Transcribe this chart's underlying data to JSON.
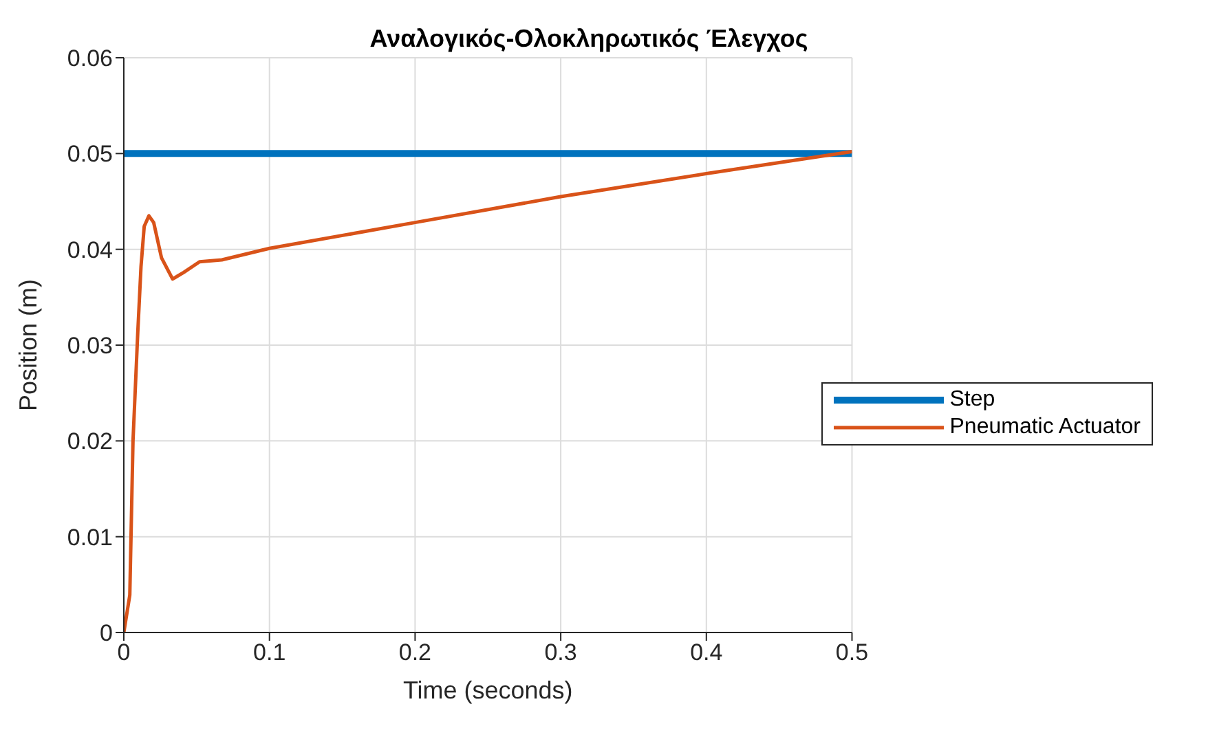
{
  "chart_data": {
    "type": "line",
    "title": "Αναλογικός-Ολοκληρωτικός Έλεγχος",
    "xlabel": "Time (seconds)",
    "ylabel": "Position (m)",
    "xlim": [
      0,
      0.5
    ],
    "xticks": [
      0,
      0.1,
      0.2,
      0.3,
      0.4,
      0.5
    ],
    "ylim": [
      0,
      0.06
    ],
    "yticks": [
      0,
      0.01,
      0.02,
      0.03,
      0.04,
      0.05,
      0.06
    ],
    "grid": true,
    "legend": "right",
    "marker": "none",
    "line_style": "solid",
    "series": [
      {
        "name": "Step",
        "color": "#0072bd",
        "x": [
          0,
          0.5
        ],
        "values": [
          0.05,
          0.05
        ]
      },
      {
        "name": "Pneumatic Actuator",
        "color": "#d95319",
        "x": [
          0,
          0.0041,
          0.0063,
          0.0096,
          0.0118,
          0.014,
          0.0172,
          0.0205,
          0.0259,
          0.0335,
          0.0412,
          0.052,
          0.0673,
          0.1,
          0.2,
          0.3,
          0.4,
          0.5
        ],
        "values": [
          0,
          0.0039,
          0.02,
          0.0314,
          0.0382,
          0.0424,
          0.0435,
          0.0428,
          0.0391,
          0.0369,
          0.0376,
          0.0387,
          0.0389,
          0.0401,
          0.0428,
          0.0455,
          0.0479,
          0.0502
        ]
      }
    ]
  }
}
